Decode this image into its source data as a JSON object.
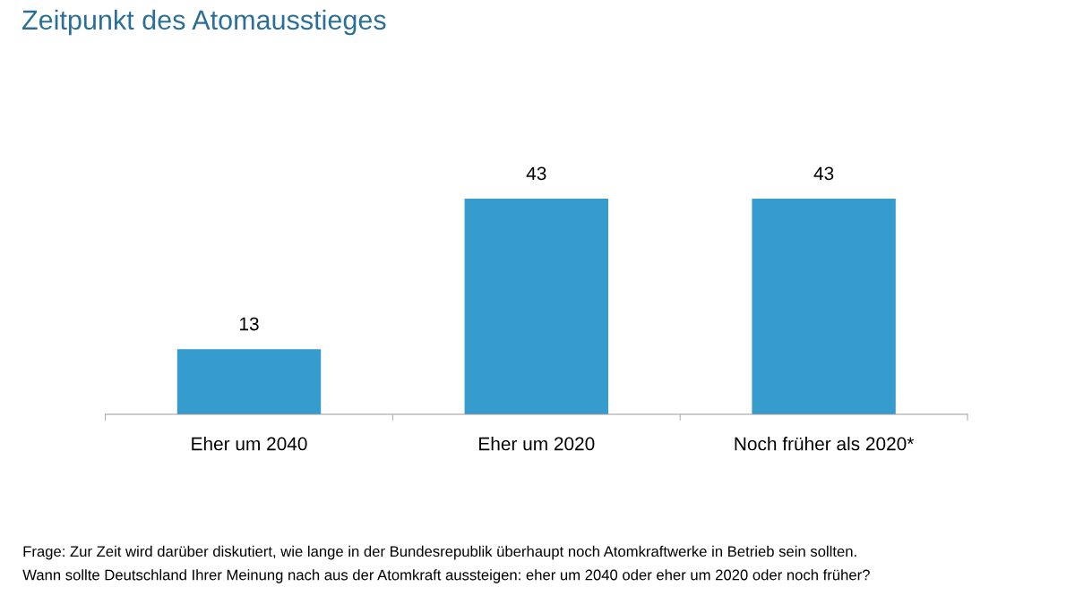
{
  "chart_data": {
    "type": "bar",
    "title": "Zeitpunkt des Atomausstieges",
    "categories": [
      "Eher um 2040",
      "Eher um 2020",
      "Noch früher als 2020*"
    ],
    "values": [
      13,
      43,
      43
    ],
    "color": "#369bcd",
    "data_labels": true,
    "grid": false,
    "legend": false,
    "annotations": [
      "Frage: Zur Zeit wird darüber diskutiert, wie lange in der Bundesrepublik überhaupt noch Atomkraftwerke in Betrieb sein sollten.",
      "Wann sollte Deutschland Ihrer Meinung nach aus der Atomkraft aussteigen: eher um 2040 oder eher um 2020 oder noch früher?"
    ]
  }
}
